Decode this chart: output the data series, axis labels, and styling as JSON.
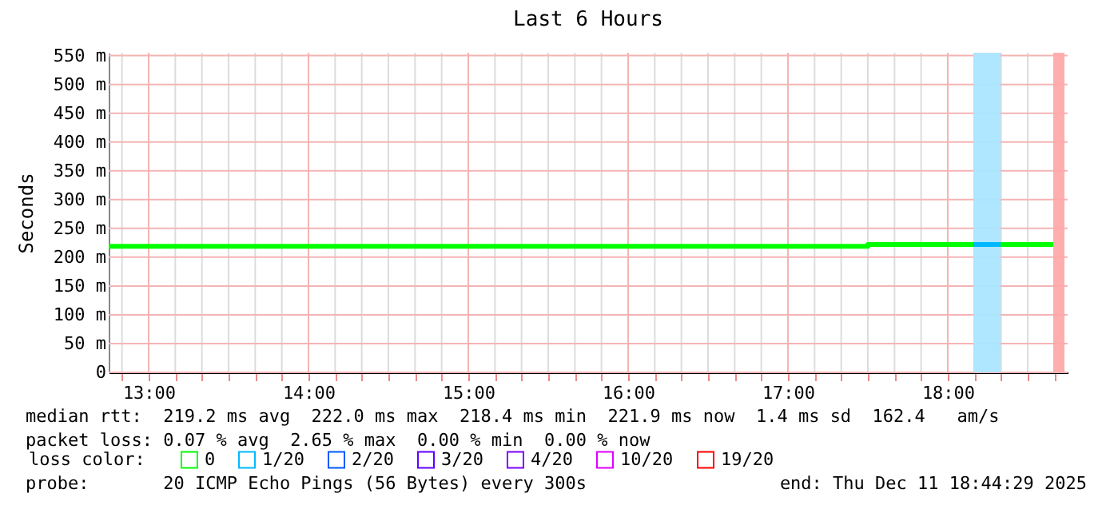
{
  "chart_data": {
    "type": "line",
    "title": "Last 6 Hours",
    "ylabel": "Seconds",
    "legend_title": "loss color:",
    "legend": "bottom",
    "grid": true,
    "line_style": "solid",
    "marker": "none",
    "xlim": [
      12.75,
      18.75
    ],
    "xticks": [
      {
        "value": 12.8333,
        "label": null
      },
      {
        "value": 13,
        "label": "13:00"
      },
      {
        "value": 13.1667,
        "label": null
      },
      {
        "value": 13.3333,
        "label": null
      },
      {
        "value": 13.5,
        "label": null
      },
      {
        "value": 13.6667,
        "label": null
      },
      {
        "value": 13.8333,
        "label": null
      },
      {
        "value": 14,
        "label": "14:00"
      },
      {
        "value": 14.1667,
        "label": null
      },
      {
        "value": 14.3333,
        "label": null
      },
      {
        "value": 14.5,
        "label": null
      },
      {
        "value": 14.6667,
        "label": null
      },
      {
        "value": 14.8333,
        "label": null
      },
      {
        "value": 15,
        "label": "15:00"
      },
      {
        "value": 15.1667,
        "label": null
      },
      {
        "value": 15.3333,
        "label": null
      },
      {
        "value": 15.5,
        "label": null
      },
      {
        "value": 15.6667,
        "label": null
      },
      {
        "value": 15.8333,
        "label": null
      },
      {
        "value": 16,
        "label": "16:00"
      },
      {
        "value": 16.1667,
        "label": null
      },
      {
        "value": 16.3333,
        "label": null
      },
      {
        "value": 16.5,
        "label": null
      },
      {
        "value": 16.6667,
        "label": null
      },
      {
        "value": 16.8333,
        "label": null
      },
      {
        "value": 17,
        "label": "17:00"
      },
      {
        "value": 17.1667,
        "label": null
      },
      {
        "value": 17.3333,
        "label": null
      },
      {
        "value": 17.5,
        "label": null
      },
      {
        "value": 17.6667,
        "label": null
      },
      {
        "value": 17.8333,
        "label": null
      },
      {
        "value": 18,
        "label": "18:00"
      },
      {
        "value": 18.1667,
        "label": null
      },
      {
        "value": 18.3333,
        "label": null
      },
      {
        "value": 18.5,
        "label": null
      },
      {
        "value": 18.6667,
        "label": null
      }
    ],
    "ylim": [
      0,
      555
    ],
    "yticks": [
      {
        "value": 0,
        "label": "0"
      },
      {
        "value": 50,
        "label": "50 m"
      },
      {
        "value": 100,
        "label": "100 m"
      },
      {
        "value": 150,
        "label": "150 m"
      },
      {
        "value": 200,
        "label": "200 m"
      },
      {
        "value": 250,
        "label": "250 m"
      },
      {
        "value": 300,
        "label": "300 m"
      },
      {
        "value": 350,
        "label": "350 m"
      },
      {
        "value": 400,
        "label": "400 m"
      },
      {
        "value": 450,
        "label": "450 m"
      },
      {
        "value": 500,
        "label": "500 m"
      },
      {
        "value": 550,
        "label": "550 m"
      }
    ],
    "series": [
      {
        "name": "0",
        "color": "#00ff00",
        "x": [
          12.75,
          17.5,
          17.5,
          18.16,
          18.25,
          18.33,
          18.66
        ],
        "values": [
          219,
          219,
          222,
          222,
          null,
          222,
          222
        ]
      },
      {
        "name": "1/20",
        "color": "#00b8ff",
        "x": [
          18.16,
          18.33
        ],
        "values": [
          222,
          222
        ]
      },
      {
        "name": "2/20",
        "color": "#0059ff"
      },
      {
        "name": "3/20",
        "color": "#5e00ff"
      },
      {
        "name": "4/20",
        "color": "#7e00ff"
      },
      {
        "name": "10/20",
        "color": "#dd00ff"
      },
      {
        "name": "19/20",
        "color": "#ff0000"
      }
    ],
    "bands": [
      {
        "axis": "x",
        "from": 18.16,
        "to": 18.33,
        "color": "#aae6ff"
      },
      {
        "axis": "x",
        "from": 18.66,
        "to": 18.73,
        "color": "#ffaaaa"
      }
    ],
    "annotations": [
      "median rtt:  219.2 ms avg  222.0 ms max  218.4 ms min  221.9 ms now  1.4 ms sd  162.4   am/s",
      "packet loss: 0.07 % avg  2.65 % max  0.00 % min  0.00 % now",
      "probe:       20 ICMP Echo Pings (56 Bytes) every 300s",
      "end: Thu Dec 11 18:44:29 2025"
    ]
  }
}
